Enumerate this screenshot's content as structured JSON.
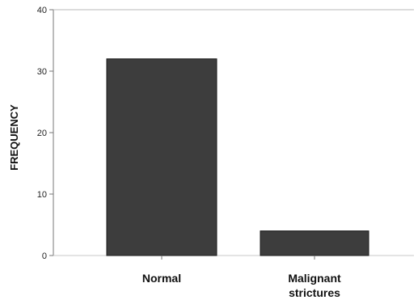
{
  "chart_data": {
    "type": "bar",
    "title": "",
    "xlabel": "",
    "ylabel": "FREQUENCY",
    "categories": [
      "Normal",
      "Malignant strictures"
    ],
    "category_lines": [
      [
        "Normal"
      ],
      [
        "Malignant",
        "strictures"
      ]
    ],
    "values": [
      32,
      4
    ],
    "ylim": [
      0,
      40
    ],
    "yticks": [
      "0",
      "10",
      "20",
      "30",
      "40"
    ],
    "grid": false,
    "legend": "none",
    "colors": {
      "bar": "#3d3d3d",
      "bar_edge": "#1a1a1a",
      "axis": "#777777"
    }
  }
}
